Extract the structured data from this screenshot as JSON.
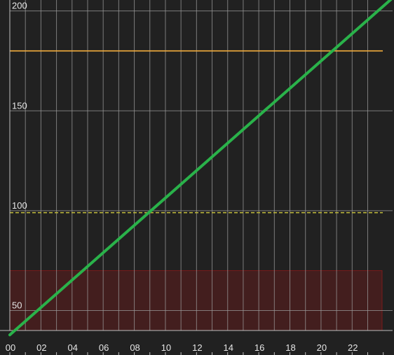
{
  "chart_data": {
    "type": "line",
    "x_tick_labels": [
      "00",
      "02",
      "04",
      "06",
      "08",
      "10",
      "12",
      "14",
      "16",
      "18",
      "20",
      "22"
    ],
    "y_tick_labels": [
      "50",
      "100",
      "150",
      "200"
    ],
    "xlim": [
      0,
      24.6
    ],
    "ylim": [
      40,
      205.5
    ],
    "grid": true,
    "series": [
      {
        "x": [
          0,
          24.6
        ],
        "y": [
          37.8,
          206.5
        ],
        "color": "#2ab24a"
      }
    ],
    "reference_lines": [
      {
        "y": 180,
        "style": "solid",
        "color": "#f4ad3d"
      },
      {
        "y": 99,
        "style": "dashed",
        "color": "#b9b33a"
      }
    ],
    "shaded_band": {
      "y_from": 40,
      "y_to": 70,
      "color": "#8b1a1a"
    },
    "colors": {
      "background": "#212121",
      "grid": "#9a9a9a",
      "axis": "#bdbdbd",
      "text": "#e6e6e6"
    }
  }
}
